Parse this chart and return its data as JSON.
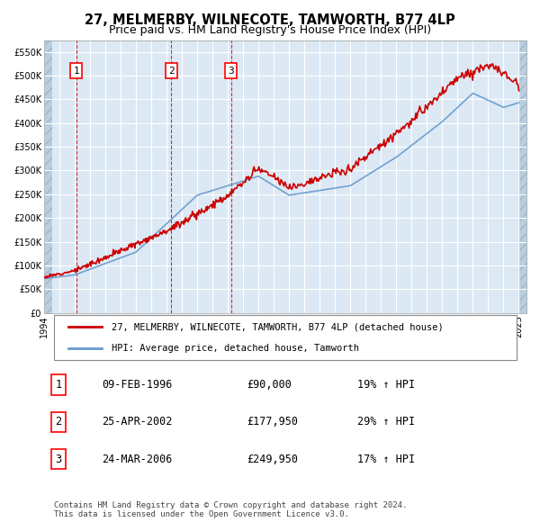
{
  "title1": "27, MELMERBY, WILNECOTE, TAMWORTH, B77 4LP",
  "title2": "Price paid vs. HM Land Registry's House Price Index (HPI)",
  "ylabel": "",
  "background_color": "#dce9f5",
  "hatch_color": "#c0d0e0",
  "sale_dates": [
    "1996-02-09",
    "2002-04-25",
    "2006-03-24"
  ],
  "sale_prices": [
    90000,
    177950,
    249950
  ],
  "sale_labels": [
    "1",
    "2",
    "3"
  ],
  "legend_line1": "27, MELMERBY, WILNECOTE, TAMWORTH, B77 4LP (detached house)",
  "legend_line2": "HPI: Average price, detached house, Tamworth",
  "table_data": [
    [
      "1",
      "09-FEB-1996",
      "£90,000",
      "19% ↑ HPI"
    ],
    [
      "2",
      "25-APR-2002",
      "£177,950",
      "29% ↑ HPI"
    ],
    [
      "3",
      "24-MAR-2006",
      "£249,950",
      "17% ↑ HPI"
    ]
  ],
  "footer": "Contains HM Land Registry data © Crown copyright and database right 2024.\nThis data is licensed under the Open Government Licence v3.0.",
  "ylim": [
    0,
    575000
  ],
  "yticks": [
    0,
    50000,
    100000,
    150000,
    200000,
    250000,
    300000,
    350000,
    400000,
    450000,
    500000,
    550000
  ],
  "ytick_labels": [
    "£0",
    "£50K",
    "£100K",
    "£150K",
    "£200K",
    "£250K",
    "£300K",
    "£350K",
    "£400K",
    "£450K",
    "£500K",
    "£550K"
  ],
  "red_line_color": "#cc0000",
  "blue_line_color": "#6699cc",
  "dashed_red_color": "#cc0000"
}
